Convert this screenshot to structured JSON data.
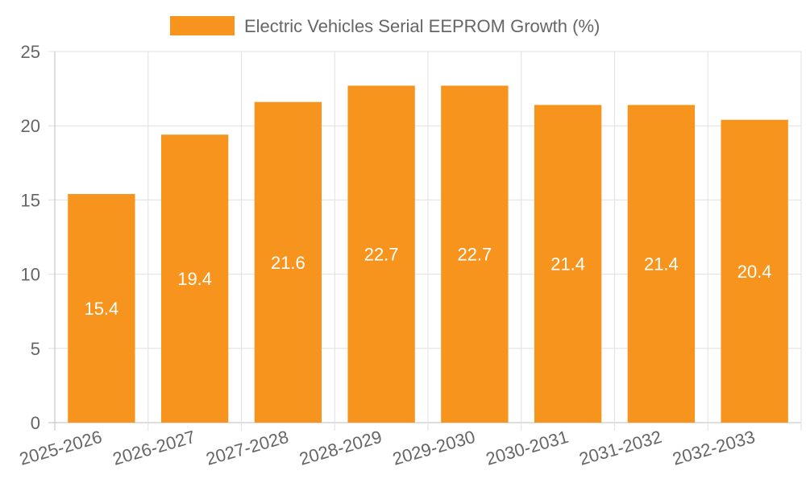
{
  "chart_data": {
    "type": "bar",
    "title": "",
    "categories": [
      "2025-2026",
      "2026-2027",
      "2027-2028",
      "2028-2029",
      "2029-2030",
      "2030-2031",
      "2031-2032",
      "2032-2033"
    ],
    "series": [
      {
        "name": "Electric Vehicles Serial EEPROM Growth (%)",
        "values": [
          15.4,
          19.4,
          21.6,
          22.7,
          22.7,
          21.4,
          21.4,
          20.4
        ],
        "color": "#f7941d"
      }
    ],
    "yticks": [
      "0",
      "5",
      "10",
      "15",
      "20",
      "25"
    ],
    "ylim": [
      0,
      25
    ],
    "xlabel": "",
    "ylabel": "",
    "grid": true,
    "legend": "top-center",
    "colors": {
      "grid": "#e0e0e0",
      "axis": "#bdbdbd",
      "text": "#666666",
      "bar_label": "#ffffff"
    }
  }
}
